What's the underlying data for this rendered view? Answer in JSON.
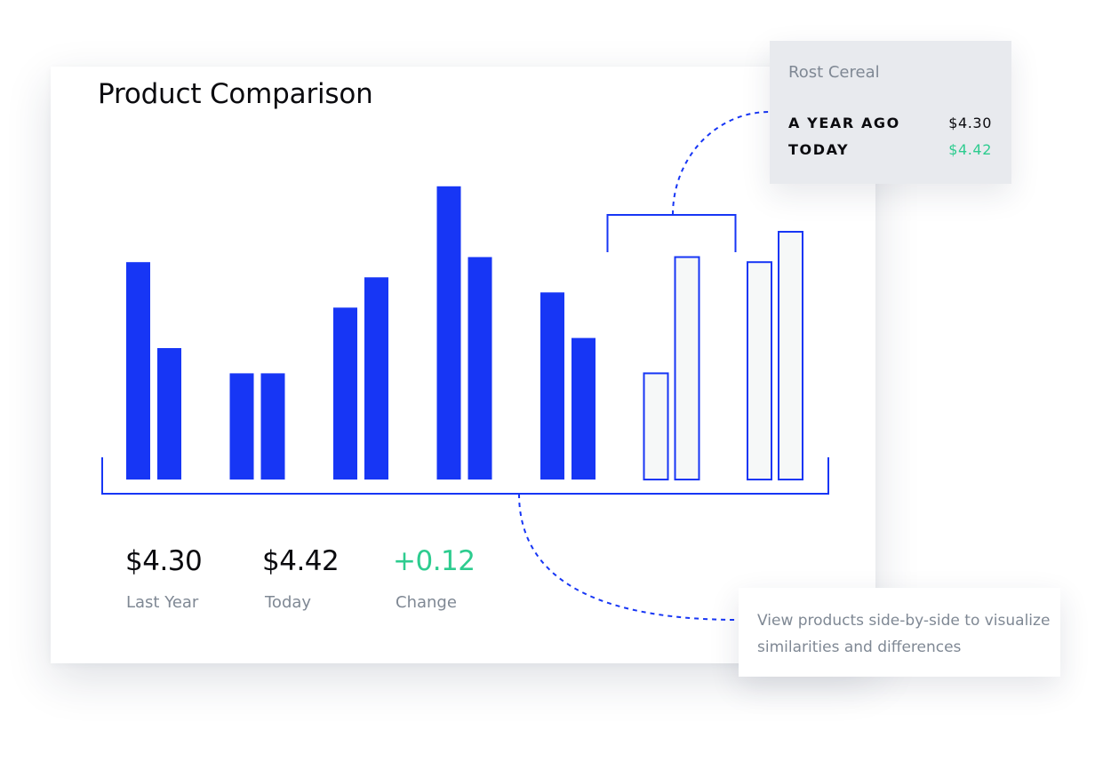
{
  "page": {
    "title": "Product Comparison"
  },
  "colors": {
    "filled_bar": "#1736f5",
    "outline_bar": "#1736f5",
    "outline_fill": "#f6f8f8",
    "axis": "#1736f5",
    "positive": "#2dcc8f",
    "muted_text": "#7f8894"
  },
  "chart_data": {
    "type": "bar",
    "title": "Product Comparison",
    "categories": [
      "",
      "",
      "",
      "",
      "",
      "",
      ""
    ],
    "series": [
      {
        "values": [
          4.3,
          2.1,
          3.4,
          5.8,
          3.7,
          2.1,
          4.3
        ],
        "style": [
          "filled",
          "filled",
          "filled",
          "filled",
          "filled",
          "outline",
          "outline"
        ]
      },
      {
        "values": [
          2.6,
          2.1,
          4.0,
          4.4,
          2.8,
          4.4,
          4.9
        ],
        "style": [
          "filled",
          "filled",
          "filled",
          "filled",
          "filled",
          "outline",
          "outline"
        ]
      }
    ],
    "xlabel": "",
    "ylabel": "",
    "ylim": [
      0,
      6.2
    ],
    "grid": false,
    "legend": "none",
    "highlighted_group": 5
  },
  "stats": [
    {
      "value": "$4.30",
      "label": "Last Year",
      "tone": "neutral"
    },
    {
      "value": "$4.42",
      "label": "Today",
      "tone": "neutral"
    },
    {
      "value": "+0.12",
      "label": "Change",
      "tone": "positive"
    }
  ],
  "tooltip": {
    "product": "Rost Cereal",
    "rows": [
      {
        "label": "A YEAR AGO",
        "value": "$4.30",
        "tone": "neutral"
      },
      {
        "label": "TODAY",
        "value": "$4.42",
        "tone": "positive"
      }
    ]
  },
  "callout": {
    "text": "View products side-by-side to visualize similarities and differences"
  }
}
